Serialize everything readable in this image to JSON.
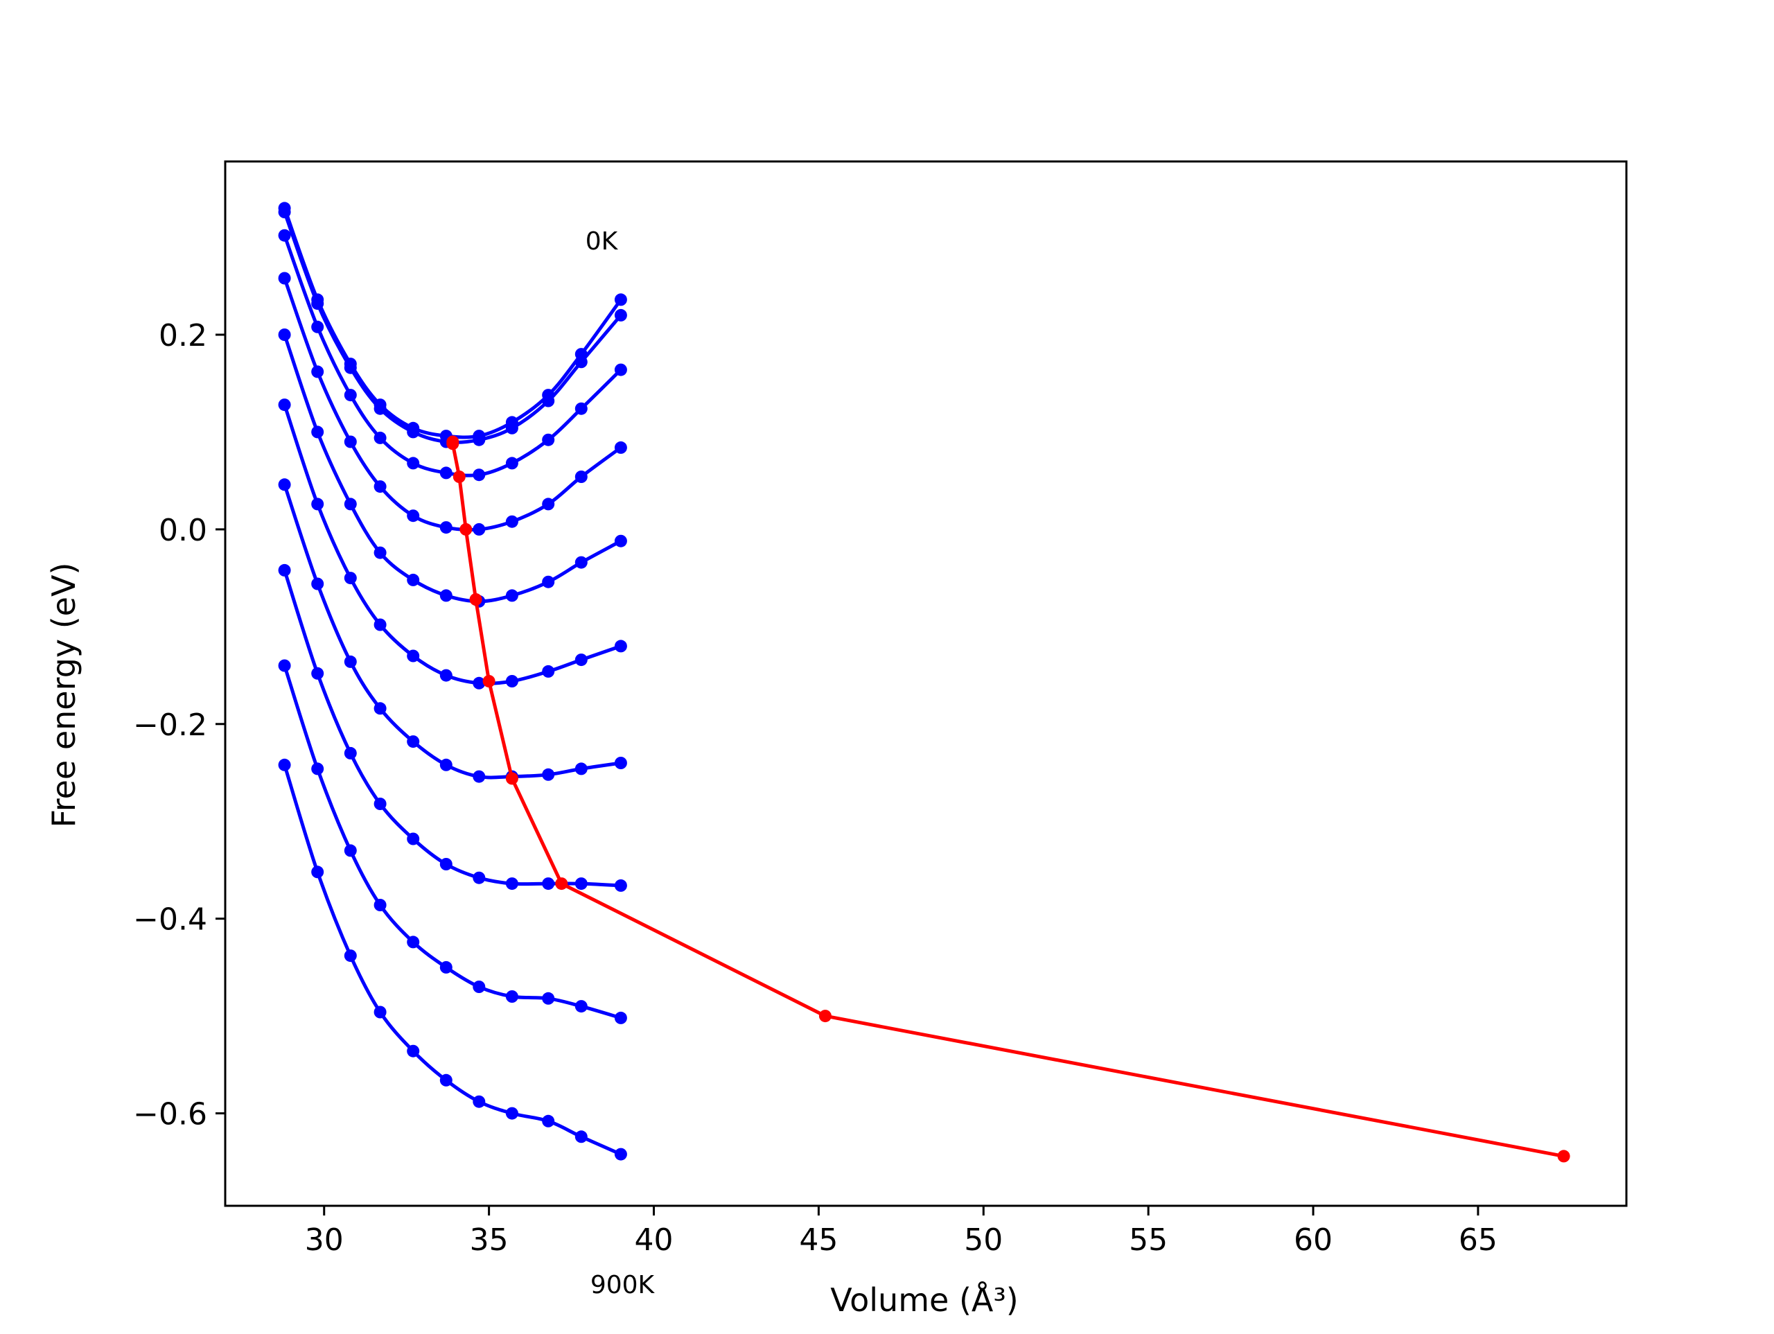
{
  "chart_data": {
    "type": "line",
    "title": "",
    "xlabel": "Volume (Å³)",
    "ylabel": "Free energy (eV)",
    "xlim": [
      27.0,
      69.5
    ],
    "ylim": [
      -0.695,
      0.378
    ],
    "xticks": [
      30,
      35,
      40,
      45,
      50,
      55,
      60,
      65
    ],
    "yticks": [
      0.2,
      0.0,
      -0.2,
      -0.4,
      -0.6
    ],
    "xtick_labels": [
      "30",
      "35",
      "40",
      "45",
      "50",
      "55",
      "60",
      "65"
    ],
    "ytick_labels": [
      "0.2",
      "0.0",
      "−0.2",
      "−0.4",
      "−0.6"
    ],
    "grid": false,
    "legend": false,
    "colors": {
      "isotherm": "#0000ff",
      "minimum_path": "#ff0000"
    },
    "annotations": [
      "0K",
      "900K"
    ],
    "x": [
      28.8,
      29.8,
      30.8,
      31.7,
      32.7,
      33.7,
      34.7,
      35.7,
      36.8,
      37.8,
      39.0
    ],
    "series": [
      {
        "values": [
          0.33,
          0.236,
          0.17,
          0.128,
          0.104,
          0.096,
          0.096,
          0.11,
          0.138,
          0.18,
          0.236
        ]
      },
      {
        "values": [
          0.326,
          0.232,
          0.166,
          0.124,
          0.1,
          0.09,
          0.092,
          0.104,
          0.132,
          0.172,
          0.22
        ]
      },
      {
        "values": [
          0.302,
          0.208,
          0.138,
          0.094,
          0.068,
          0.058,
          0.056,
          0.068,
          0.092,
          0.124,
          0.164
        ]
      },
      {
        "values": [
          0.258,
          0.162,
          0.09,
          0.044,
          0.014,
          0.002,
          0.0,
          0.008,
          0.026,
          0.054,
          0.084
        ]
      },
      {
        "values": [
          0.2,
          0.1,
          0.026,
          -0.024,
          -0.052,
          -0.068,
          -0.074,
          -0.068,
          -0.054,
          -0.034,
          -0.012
        ]
      },
      {
        "values": [
          0.128,
          0.026,
          -0.05,
          -0.098,
          -0.13,
          -0.15,
          -0.158,
          -0.156,
          -0.146,
          -0.134,
          -0.12
        ]
      },
      {
        "values": [
          0.046,
          -0.056,
          -0.136,
          -0.184,
          -0.218,
          -0.242,
          -0.254,
          -0.254,
          -0.252,
          -0.246,
          -0.24
        ]
      },
      {
        "values": [
          -0.042,
          -0.148,
          -0.23,
          -0.282,
          -0.318,
          -0.344,
          -0.358,
          -0.364,
          -0.364,
          -0.364,
          -0.366
        ]
      },
      {
        "values": [
          -0.14,
          -0.246,
          -0.33,
          -0.386,
          -0.424,
          -0.45,
          -0.47,
          -0.48,
          -0.482,
          -0.49,
          -0.502
        ]
      },
      {
        "values": [
          -0.242,
          -0.352,
          -0.438,
          -0.496,
          -0.536,
          -0.566,
          -0.588,
          -0.6,
          -0.608,
          -0.624,
          -0.642
        ]
      }
    ],
    "minimum_path": {
      "x": [
        33.9,
        33.9,
        34.1,
        34.3,
        34.6,
        35.0,
        35.7,
        37.2,
        45.2,
        67.6
      ],
      "y": [
        0.09,
        0.088,
        0.054,
        0.0,
        -0.072,
        -0.156,
        -0.256,
        -0.364,
        -0.5,
        -0.644
      ]
    }
  }
}
